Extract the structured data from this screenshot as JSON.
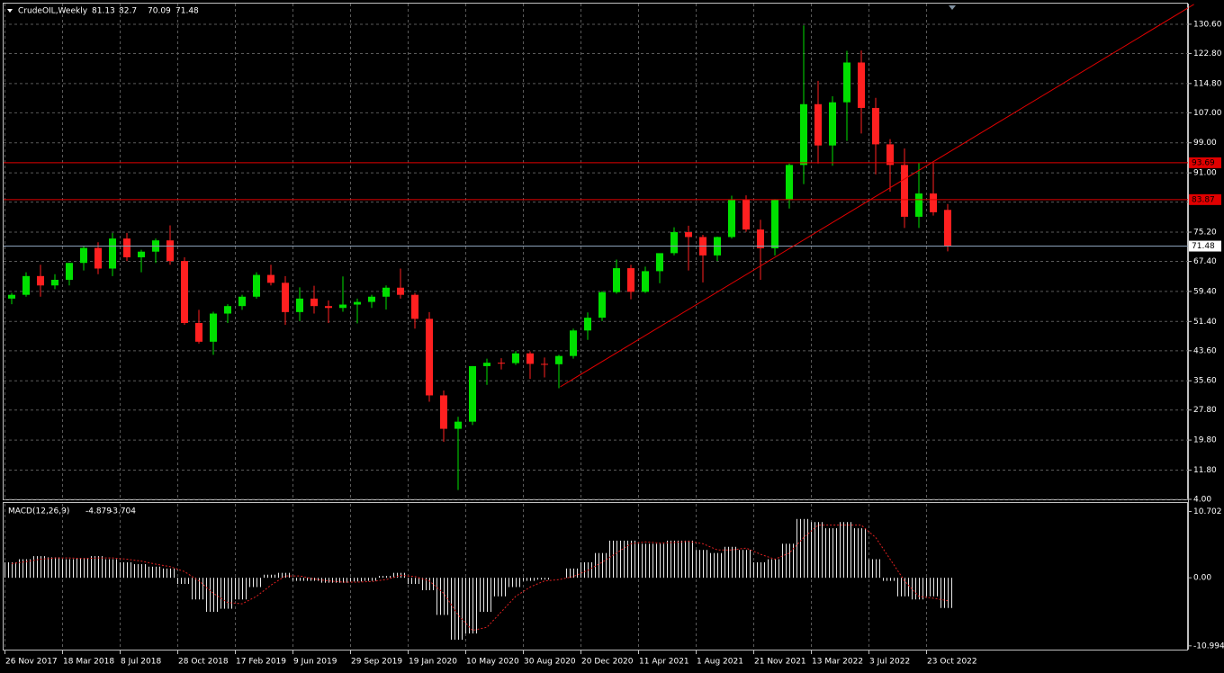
{
  "chart_data": [
    {
      "type": "candlestick",
      "title": "CrudeOIL,Weekly",
      "categories": [
        "26 Nov 2017",
        null,
        null,
        null,
        "18 Mar 2018",
        null,
        null,
        null,
        "8 Jul 2018",
        null,
        null,
        null,
        "28 Oct 2018",
        null,
        null,
        null,
        "17 Feb 2019",
        null,
        null,
        null,
        "9 Jun 2019",
        null,
        null,
        null,
        "29 Sep 2019",
        null,
        null,
        null,
        "19 Jan 2020",
        null,
        null,
        null,
        "10 May 2020",
        null,
        null,
        null,
        "30 Aug 2020",
        null,
        null,
        null,
        "20 Dec 2020",
        null,
        null,
        null,
        "11 Apr 2021",
        null,
        null,
        null,
        "1 Aug 2021",
        null,
        null,
        null,
        "21 Nov 2021",
        null,
        null,
        null,
        "13 Mar 2022",
        null,
        null,
        null,
        "3 Jul 2022",
        null,
        null,
        null,
        "23 Oct 2022",
        null
      ],
      "open": [
        57.5,
        58.5,
        63.5,
        61,
        62.5,
        67,
        71,
        65.5,
        73.5,
        68.5,
        70,
        73,
        67.5,
        51,
        46,
        53.5,
        55.5,
        58,
        63.8,
        61.7,
        53.9,
        57.5,
        55.5,
        55,
        55.9,
        56.6,
        58,
        60.4,
        58.5,
        52.1,
        31.7,
        22.8,
        24.7,
        39.5,
        40.4,
        40.3,
        42.9,
        40.1,
        40,
        42.2,
        49,
        52.4,
        59.2,
        65.6,
        59.3,
        64.8,
        69.6,
        75.2,
        73.9,
        69,
        73.9,
        83.8,
        75.9,
        70.9,
        83.8,
        93.1,
        109.3,
        98.3,
        109.8,
        120.4,
        108.3,
        98.6,
        93.1,
        79.3,
        85.5,
        81.13
      ],
      "high": [
        59,
        64.5,
        66.5,
        64,
        67,
        71.5,
        72.5,
        75,
        75,
        70.5,
        73.5,
        77,
        68.5,
        54.5,
        54,
        56,
        58.5,
        64.5,
        66.5,
        63.5,
        60.5,
        60.9,
        57,
        63.4,
        57.5,
        58.5,
        61,
        65.5,
        59,
        53.9,
        33,
        26,
        39.5,
        41.5,
        41.6,
        43.5,
        43.4,
        41.8,
        42.5,
        49.5,
        53.8,
        59.5,
        67.9,
        66.5,
        66,
        69.5,
        76.5,
        76.9,
        74.5,
        74,
        84.9,
        85,
        78.5,
        84,
        93.5,
        130.3,
        115.5,
        111.4,
        123.5,
        123.6,
        111,
        100,
        97.5,
        93.6,
        93.7,
        82.7
      ],
      "low": [
        56,
        58,
        58,
        60,
        61,
        65,
        64,
        63.5,
        67.5,
        64.5,
        67,
        66.5,
        50.5,
        45.5,
        42.5,
        51,
        54.5,
        57.5,
        61,
        50.5,
        51.5,
        53.5,
        51,
        54,
        50.9,
        55,
        54.6,
        57.5,
        49.5,
        30,
        19.3,
        6.5,
        23.8,
        34.5,
        38.6,
        39.8,
        36.1,
        36.5,
        33.6,
        41.5,
        46.5,
        51.5,
        58.8,
        57.3,
        59,
        61.6,
        69,
        65,
        61.8,
        67.5,
        73.5,
        75.3,
        62.5,
        69,
        81.5,
        88,
        93.5,
        92.9,
        99.5,
        101.5,
        90.6,
        86,
        76.3,
        76.3,
        79.6,
        70.09
      ],
      "close": [
        58.5,
        63.5,
        61,
        62.5,
        67,
        71,
        65.5,
        73.5,
        68.5,
        70,
        73,
        67.5,
        51,
        46,
        53.5,
        55.5,
        58,
        63.8,
        61.7,
        53.9,
        57.5,
        55.5,
        55,
        55.9,
        56.6,
        58,
        60.4,
        58.5,
        52.1,
        31.7,
        22.8,
        24.7,
        39.5,
        40.4,
        40.3,
        42.9,
        40.1,
        40,
        42.2,
        49,
        52.4,
        59.2,
        65.6,
        59.3,
        64.8,
        69.6,
        75.2,
        73.9,
        69,
        73.9,
        83.8,
        75.9,
        70.9,
        83.8,
        93.1,
        109.3,
        98.3,
        109.8,
        120.4,
        108.3,
        98.6,
        93.1,
        79.3,
        85.5,
        80.5,
        71.48
      ],
      "up_color": "#00e000",
      "down_color": "#ff2020",
      "ylim": [
        4.0,
        136.1
      ],
      "yticks": [
        {
          "value": 4,
          "label": "4.00"
        },
        {
          "value": 11.8,
          "label": "11.80"
        },
        {
          "value": 19.8,
          "label": "19.80"
        },
        {
          "value": 27.8,
          "label": "27.80"
        },
        {
          "value": 35.6,
          "label": "35.60"
        },
        {
          "value": 43.6,
          "label": "43.60"
        },
        {
          "value": 51.4,
          "label": "51.40"
        },
        {
          "value": 59.4,
          "label": "59.40"
        },
        {
          "value": 67.4,
          "label": "67.40"
        },
        {
          "value": 75.2,
          "label": "75.20"
        },
        {
          "value": 83.2,
          "label": "83.20"
        },
        {
          "value": 91,
          "label": "91.00"
        },
        {
          "value": 99,
          "label": "99.00"
        },
        {
          "value": 107,
          "label": "107.00"
        },
        {
          "value": 114.8,
          "label": "114.80"
        },
        {
          "value": 122.8,
          "label": "122.80"
        },
        {
          "value": 130.6,
          "label": "130.60"
        }
      ],
      "grid": true,
      "levels": [
        93.69,
        83.87
      ],
      "level_color": "#e00000",
      "trendline": {
        "color": "#e00000",
        "x": [
          38.1,
          82.1
        ],
        "y": [
          34.0,
          135.9
        ]
      }
    },
    {
      "type": "macd",
      "title": "MACD(12,26,9)",
      "macd": [
        2.5,
        3.0,
        3.5,
        3.3,
        3.0,
        3.2,
        3.5,
        3.0,
        2.5,
        2.2,
        1.8,
        1.5,
        -1.0,
        -3.5,
        -5.5,
        -5.0,
        -3.5,
        -1.5,
        0.5,
        0.8,
        -0.5,
        -0.5,
        -0.8,
        -0.8,
        -0.6,
        -0.5,
        0.3,
        0.8,
        -1.0,
        -2.0,
        -6.0,
        -10.0,
        -9.0,
        -5.5,
        -3.0,
        -1.5,
        -0.5,
        -0.3,
        0.0,
        1.5,
        2.5,
        4.0,
        6.0,
        6.0,
        5.5,
        5.5,
        6.0,
        6.0,
        4.5,
        4.0,
        5.0,
        4.5,
        2.5,
        3.0,
        5.5,
        9.5,
        9.0,
        8.0,
        9.0,
        8.0,
        3.0,
        -0.5,
        -3.0,
        -3.5,
        -3.0,
        -4.879
      ],
      "signal": [
        2.3,
        2.6,
        3.0,
        3.2,
        3.2,
        3.1,
        3.2,
        3.2,
        3.0,
        2.7,
        2.2,
        1.8,
        1.0,
        -0.5,
        -2.5,
        -4.0,
        -4.2,
        -3.0,
        -1.2,
        0.3,
        0.3,
        -0.2,
        -0.5,
        -0.7,
        -0.7,
        -0.6,
        -0.3,
        0.4,
        0.2,
        -0.5,
        -2.5,
        -6.0,
        -8.5,
        -8.0,
        -5.5,
        -3.0,
        -1.5,
        -0.5,
        -0.3,
        0.2,
        1.2,
        2.5,
        4.0,
        5.5,
        5.8,
        5.6,
        5.7,
        5.9,
        5.5,
        4.5,
        4.5,
        4.8,
        3.8,
        3.0,
        4.0,
        6.5,
        8.5,
        8.5,
        8.5,
        8.5,
        6.5,
        3.0,
        -0.5,
        -3.0,
        -3.3,
        -3.704
      ],
      "hist_color": "#e8e8e8",
      "signal_color": "#e02020",
      "ylim": [
        -11.6,
        11.94
      ],
      "yticks": [
        10.702,
        {
          "value": 0,
          "label": "0.00"
        },
        -10.994
      ]
    }
  ]
}
